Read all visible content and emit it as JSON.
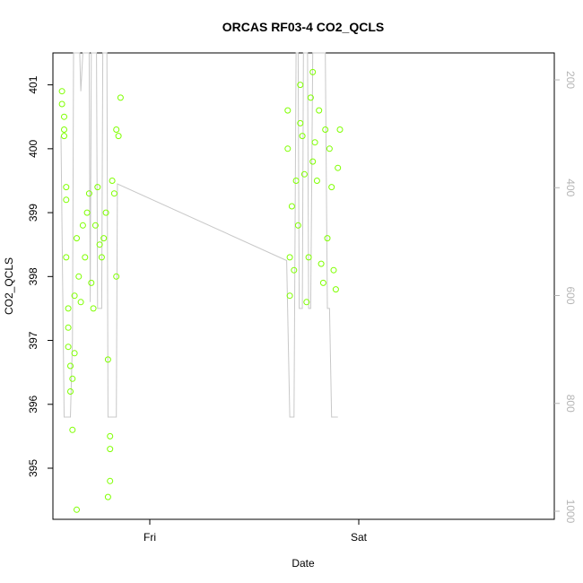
{
  "chart_data": {
    "type": "scatter",
    "title": "ORCAS RF03-4 CO2_QCLS",
    "xlabel": "Date",
    "ylabel": "CO2_QCLS",
    "x_ticks": [
      "Fri",
      "Sat"
    ],
    "y_ticks": [
      395,
      396,
      397,
      398,
      399,
      400,
      401
    ],
    "ylim": [
      394.2,
      401.5
    ],
    "y2_ticks": [
      200,
      400,
      600,
      800,
      1000
    ],
    "y2lim": [
      1015,
      150
    ],
    "grid": false,
    "legend": "none",
    "colors": {
      "points": "#7fff00",
      "line": "#c8c8c8",
      "axis": "#000000",
      "y2_axis": "#b5b5b5"
    },
    "series": [
      {
        "values": [
          [
            -0.42,
            400.9
          ],
          [
            -0.42,
            400.7
          ],
          [
            -0.41,
            400.5
          ],
          [
            -0.41,
            400.3
          ],
          [
            -0.41,
            400.2
          ],
          [
            -0.4,
            399.4
          ],
          [
            -0.4,
            399.2
          ],
          [
            -0.4,
            398.3
          ],
          [
            -0.39,
            397.5
          ],
          [
            -0.39,
            397.2
          ],
          [
            -0.39,
            396.9
          ],
          [
            -0.38,
            396.6
          ],
          [
            -0.38,
            396.2
          ],
          [
            -0.37,
            395.6
          ],
          [
            -0.37,
            396.4
          ],
          [
            -0.36,
            396.8
          ],
          [
            -0.36,
            397.7
          ],
          [
            -0.35,
            398.6
          ],
          [
            -0.35,
            394.35
          ],
          [
            -0.34,
            398.0
          ],
          [
            -0.33,
            397.6
          ],
          [
            -0.32,
            398.8
          ],
          [
            -0.31,
            398.3
          ],
          [
            -0.3,
            399.0
          ],
          [
            -0.29,
            399.3
          ],
          [
            -0.28,
            397.9
          ],
          [
            -0.27,
            397.5
          ],
          [
            -0.26,
            398.8
          ],
          [
            -0.25,
            399.4
          ],
          [
            -0.24,
            398.5
          ],
          [
            -0.23,
            398.3
          ],
          [
            -0.22,
            398.6
          ],
          [
            -0.21,
            399.0
          ],
          [
            -0.2,
            396.7
          ],
          [
            -0.19,
            395.5
          ],
          [
            -0.19,
            395.3
          ],
          [
            -0.19,
            394.8
          ],
          [
            -0.2,
            394.55
          ],
          [
            -0.18,
            399.5
          ],
          [
            -0.17,
            399.3
          ],
          [
            -0.16,
            398.0
          ],
          [
            -0.16,
            400.3
          ],
          [
            -0.15,
            400.2
          ],
          [
            -0.14,
            400.8
          ],
          [
            0.66,
            400.6
          ],
          [
            0.66,
            400.0
          ],
          [
            0.67,
            398.3
          ],
          [
            0.67,
            397.7
          ],
          [
            0.68,
            399.1
          ],
          [
            0.69,
            398.1
          ],
          [
            0.7,
            399.5
          ],
          [
            0.71,
            398.8
          ],
          [
            0.72,
            400.4
          ],
          [
            0.72,
            401.0
          ],
          [
            0.73,
            400.2
          ],
          [
            0.74,
            399.6
          ],
          [
            0.75,
            397.6
          ],
          [
            0.76,
            398.3
          ],
          [
            0.77,
            400.8
          ],
          [
            0.78,
            401.2
          ],
          [
            0.78,
            399.8
          ],
          [
            0.79,
            400.1
          ],
          [
            0.8,
            399.5
          ],
          [
            0.81,
            400.6
          ],
          [
            0.82,
            398.2
          ],
          [
            0.83,
            397.9
          ],
          [
            0.84,
            400.3
          ],
          [
            0.85,
            398.6
          ],
          [
            0.86,
            400.0
          ],
          [
            0.87,
            399.4
          ],
          [
            0.88,
            398.1
          ],
          [
            0.89,
            397.8
          ],
          [
            0.9,
            399.7
          ],
          [
            0.91,
            400.3
          ]
        ]
      },
      {
        "values": [
          [
            -0.425,
            400.2
          ],
          [
            -0.41,
            395.8
          ],
          [
            -0.38,
            395.8
          ],
          [
            -0.37,
            397.0
          ],
          [
            -0.365,
            401.5
          ],
          [
            -0.335,
            401.5
          ],
          [
            -0.33,
            400.9
          ],
          [
            -0.32,
            401.5
          ],
          [
            -0.29,
            401.5
          ],
          [
            -0.285,
            397.6
          ],
          [
            -0.28,
            401.5
          ],
          [
            -0.255,
            401.5
          ],
          [
            -0.25,
            397.5
          ],
          [
            -0.23,
            397.5
          ],
          [
            -0.225,
            401.5
          ],
          [
            -0.205,
            401.5
          ],
          [
            -0.2,
            395.8
          ],
          [
            -0.16,
            395.8
          ],
          [
            -0.155,
            399.45
          ],
          [
            0.655,
            398.25
          ],
          [
            0.67,
            395.8
          ],
          [
            0.69,
            395.8
          ],
          [
            0.7,
            401.5
          ],
          [
            0.71,
            401.5
          ],
          [
            0.715,
            397.5
          ],
          [
            0.73,
            397.5
          ],
          [
            0.735,
            401.5
          ],
          [
            0.755,
            401.5
          ],
          [
            0.76,
            397.5
          ],
          [
            0.77,
            397.5
          ],
          [
            0.78,
            401.5
          ],
          [
            0.84,
            401.5
          ],
          [
            0.85,
            397.5
          ],
          [
            0.86,
            397.5
          ],
          [
            0.87,
            395.8
          ],
          [
            0.9,
            395.8
          ]
        ]
      }
    ]
  }
}
